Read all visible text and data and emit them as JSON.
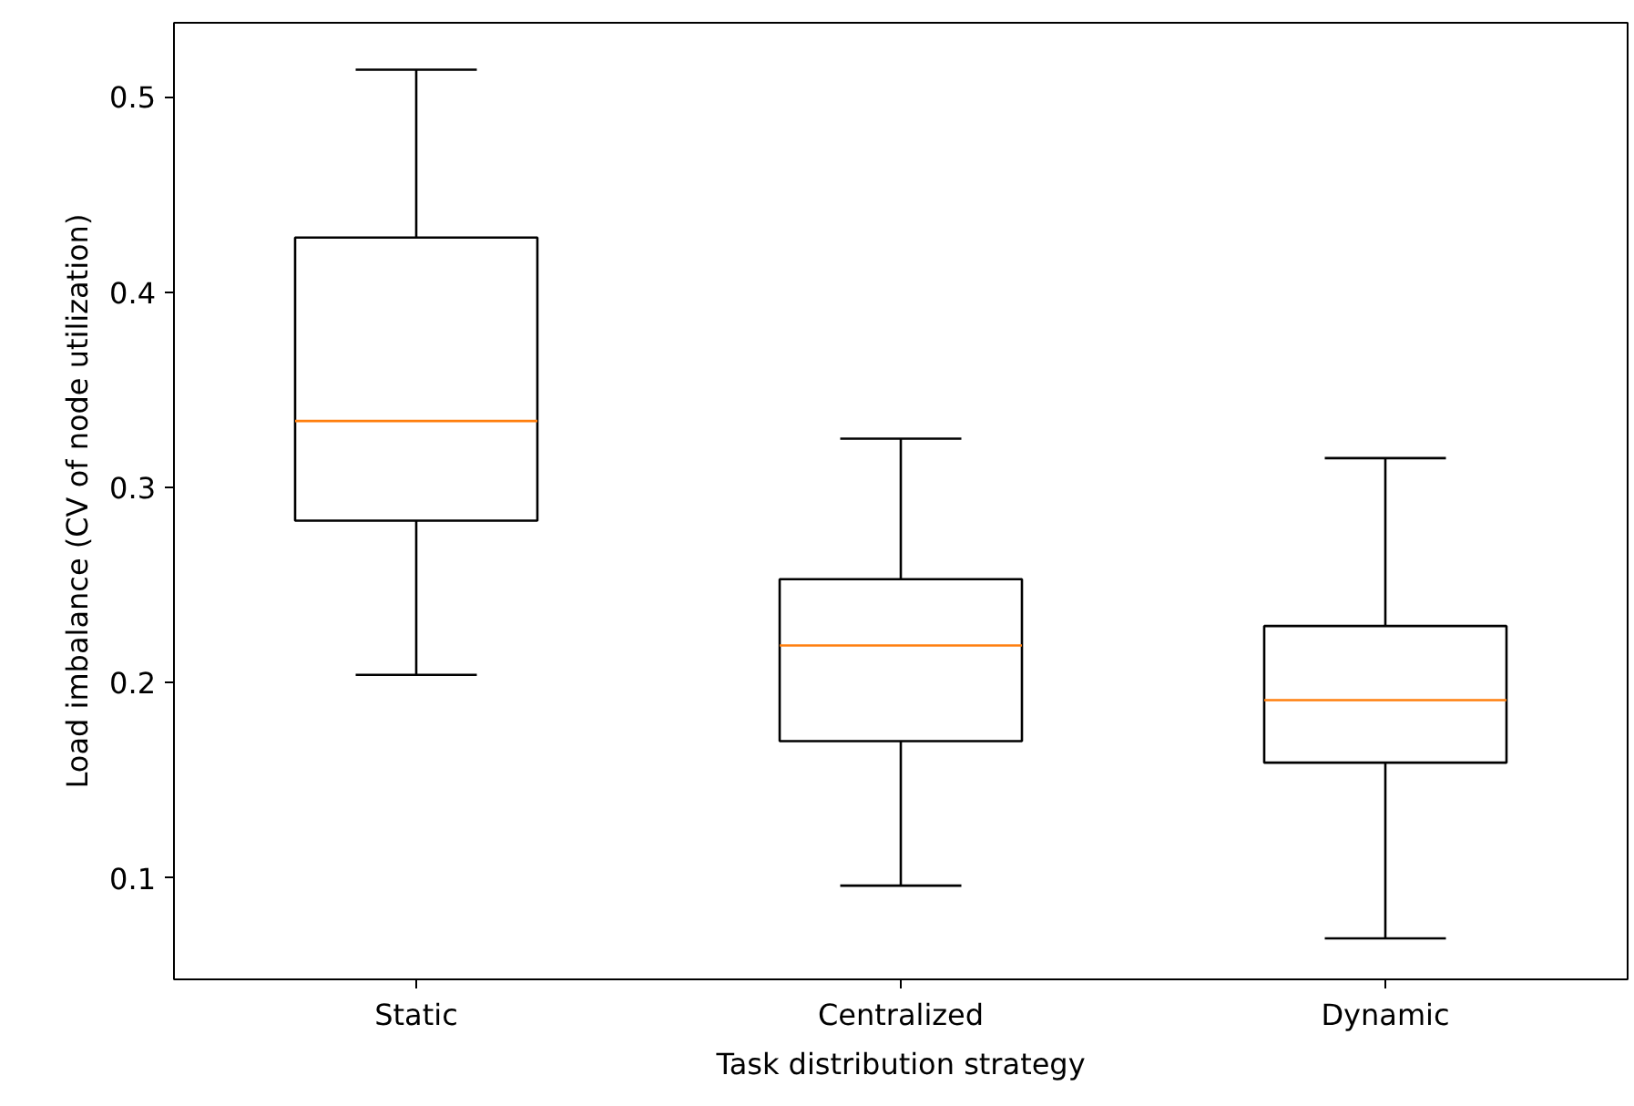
{
  "chart_data": {
    "type": "box",
    "xlabel": "Task distribution strategy",
    "ylabel": "Load imbalance (CV of node utilization)",
    "categories": [
      "Static",
      "Centralized",
      "Dynamic"
    ],
    "boxes": [
      {
        "low": 0.204,
        "q1": 0.283,
        "median": 0.334,
        "q3": 0.428,
        "high": 0.514
      },
      {
        "low": 0.096,
        "q1": 0.17,
        "median": 0.219,
        "q3": 0.253,
        "high": 0.325
      },
      {
        "low": 0.069,
        "q1": 0.159,
        "median": 0.191,
        "q3": 0.229,
        "high": 0.315
      }
    ],
    "color": "#000000",
    "ylim": [
      0.048,
      0.538
    ],
    "yticks": [
      0.1,
      0.2,
      0.3,
      0.4,
      0.5
    ],
    "grid": false
  }
}
